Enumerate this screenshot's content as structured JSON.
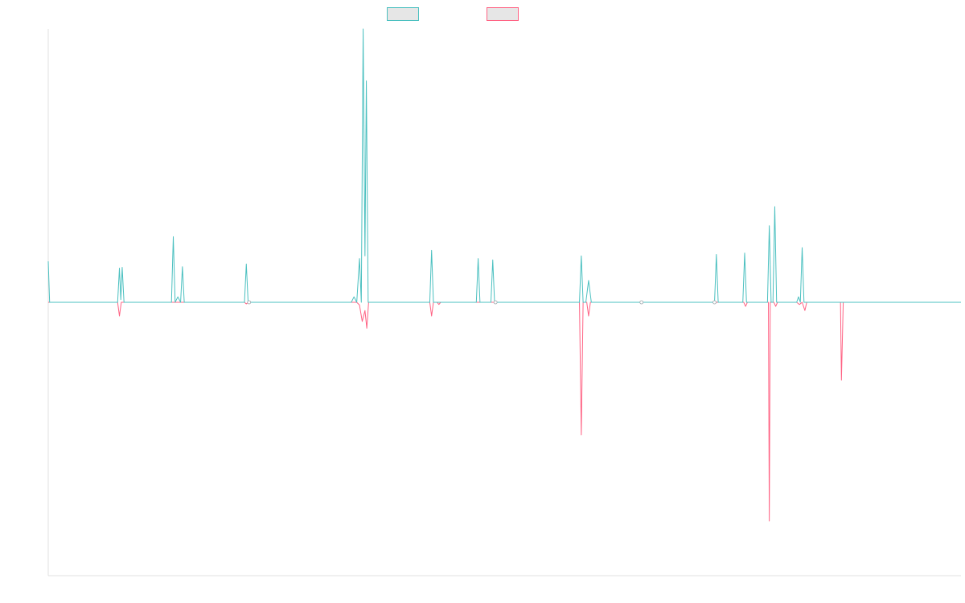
{
  "chart_data": {
    "type": "line",
    "title": "",
    "xlabel": "",
    "ylabel": "",
    "grid": false,
    "legend": {
      "position": "top-center",
      "entries": [
        {
          "series": 0,
          "label": ""
        },
        {
          "series": 1,
          "label": ""
        }
      ]
    },
    "xlim": [
      0,
      100
    ],
    "ylim": [
      -100,
      100
    ],
    "swatch_fill": "#e6e6e6",
    "axis_color": "#e0e0e0",
    "series": [
      {
        "color": "#4bc0c0",
        "markers_at": [
          22,
          49,
          65,
          73
        ],
        "points": [
          [
            0,
            15
          ],
          [
            0.15,
            0
          ],
          [
            7.6,
            0
          ],
          [
            7.8,
            12.5
          ],
          [
            7.95,
            1
          ],
          [
            8.1,
            12.8
          ],
          [
            8.3,
            0
          ],
          [
            13.5,
            0
          ],
          [
            13.7,
            24
          ],
          [
            13.9,
            0
          ],
          [
            14.2,
            2
          ],
          [
            14.5,
            0
          ],
          [
            14.7,
            13
          ],
          [
            14.9,
            0
          ],
          [
            21.5,
            0
          ],
          [
            21.7,
            14
          ],
          [
            21.9,
            0
          ],
          [
            33.2,
            0
          ],
          [
            33.5,
            2
          ],
          [
            33.8,
            0
          ],
          [
            34.1,
            16
          ],
          [
            34.3,
            0
          ],
          [
            34.5,
            100
          ],
          [
            34.7,
            17
          ],
          [
            34.85,
            81
          ],
          [
            35.05,
            0
          ],
          [
            41.8,
            0
          ],
          [
            42,
            19
          ],
          [
            42.2,
            0
          ],
          [
            46.9,
            0
          ],
          [
            47.1,
            16
          ],
          [
            47.3,
            0
          ],
          [
            48.5,
            0
          ],
          [
            48.7,
            15.5
          ],
          [
            48.9,
            0
          ],
          [
            58.2,
            0
          ],
          [
            58.4,
            17
          ],
          [
            58.6,
            0
          ],
          [
            58.9,
            0
          ],
          [
            59.2,
            8
          ],
          [
            59.5,
            0
          ],
          [
            73,
            0
          ],
          [
            73.2,
            17.5
          ],
          [
            73.4,
            0
          ],
          [
            76.1,
            0
          ],
          [
            76.3,
            18
          ],
          [
            76.5,
            0
          ],
          [
            78.8,
            0
          ],
          [
            79,
            28
          ],
          [
            79.2,
            0
          ],
          [
            79.4,
            0
          ],
          [
            79.6,
            35
          ],
          [
            79.8,
            0
          ],
          [
            82,
            0
          ],
          [
            82.2,
            2
          ],
          [
            82.4,
            0
          ],
          [
            82.6,
            20
          ],
          [
            82.8,
            0
          ],
          [
            100,
            0
          ]
        ]
      },
      {
        "color": "#ff6384",
        "markers_at": [],
        "points": [
          [
            0,
            0
          ],
          [
            7.6,
            0
          ],
          [
            7.8,
            -5
          ],
          [
            8,
            0
          ],
          [
            21.5,
            0
          ],
          [
            21.7,
            -0.6
          ],
          [
            21.9,
            0
          ],
          [
            33.8,
            0
          ],
          [
            34.1,
            -1
          ],
          [
            34.4,
            -7
          ],
          [
            34.7,
            -3
          ],
          [
            34.9,
            -9.5
          ],
          [
            35.1,
            0
          ],
          [
            41.8,
            0
          ],
          [
            42,
            -5
          ],
          [
            42.2,
            0
          ],
          [
            42.6,
            0
          ],
          [
            42.8,
            -0.8
          ],
          [
            43,
            0
          ],
          [
            58.2,
            0
          ],
          [
            58.4,
            -48.5
          ],
          [
            58.6,
            0
          ],
          [
            59,
            0
          ],
          [
            59.2,
            -5
          ],
          [
            59.4,
            0
          ],
          [
            76.2,
            0
          ],
          [
            76.4,
            -1.5
          ],
          [
            76.6,
            0
          ],
          [
            78.9,
            0
          ],
          [
            79,
            -80
          ],
          [
            79.1,
            0
          ],
          [
            79.5,
            0
          ],
          [
            79.7,
            -1.5
          ],
          [
            79.9,
            0
          ],
          [
            82,
            0
          ],
          [
            82.3,
            -0.8
          ],
          [
            82.6,
            0
          ],
          [
            82.9,
            -3
          ],
          [
            83.1,
            0
          ],
          [
            86.8,
            0
          ],
          [
            86.9,
            -28.5
          ],
          [
            87.1,
            0
          ],
          [
            100,
            0
          ]
        ]
      }
    ]
  }
}
